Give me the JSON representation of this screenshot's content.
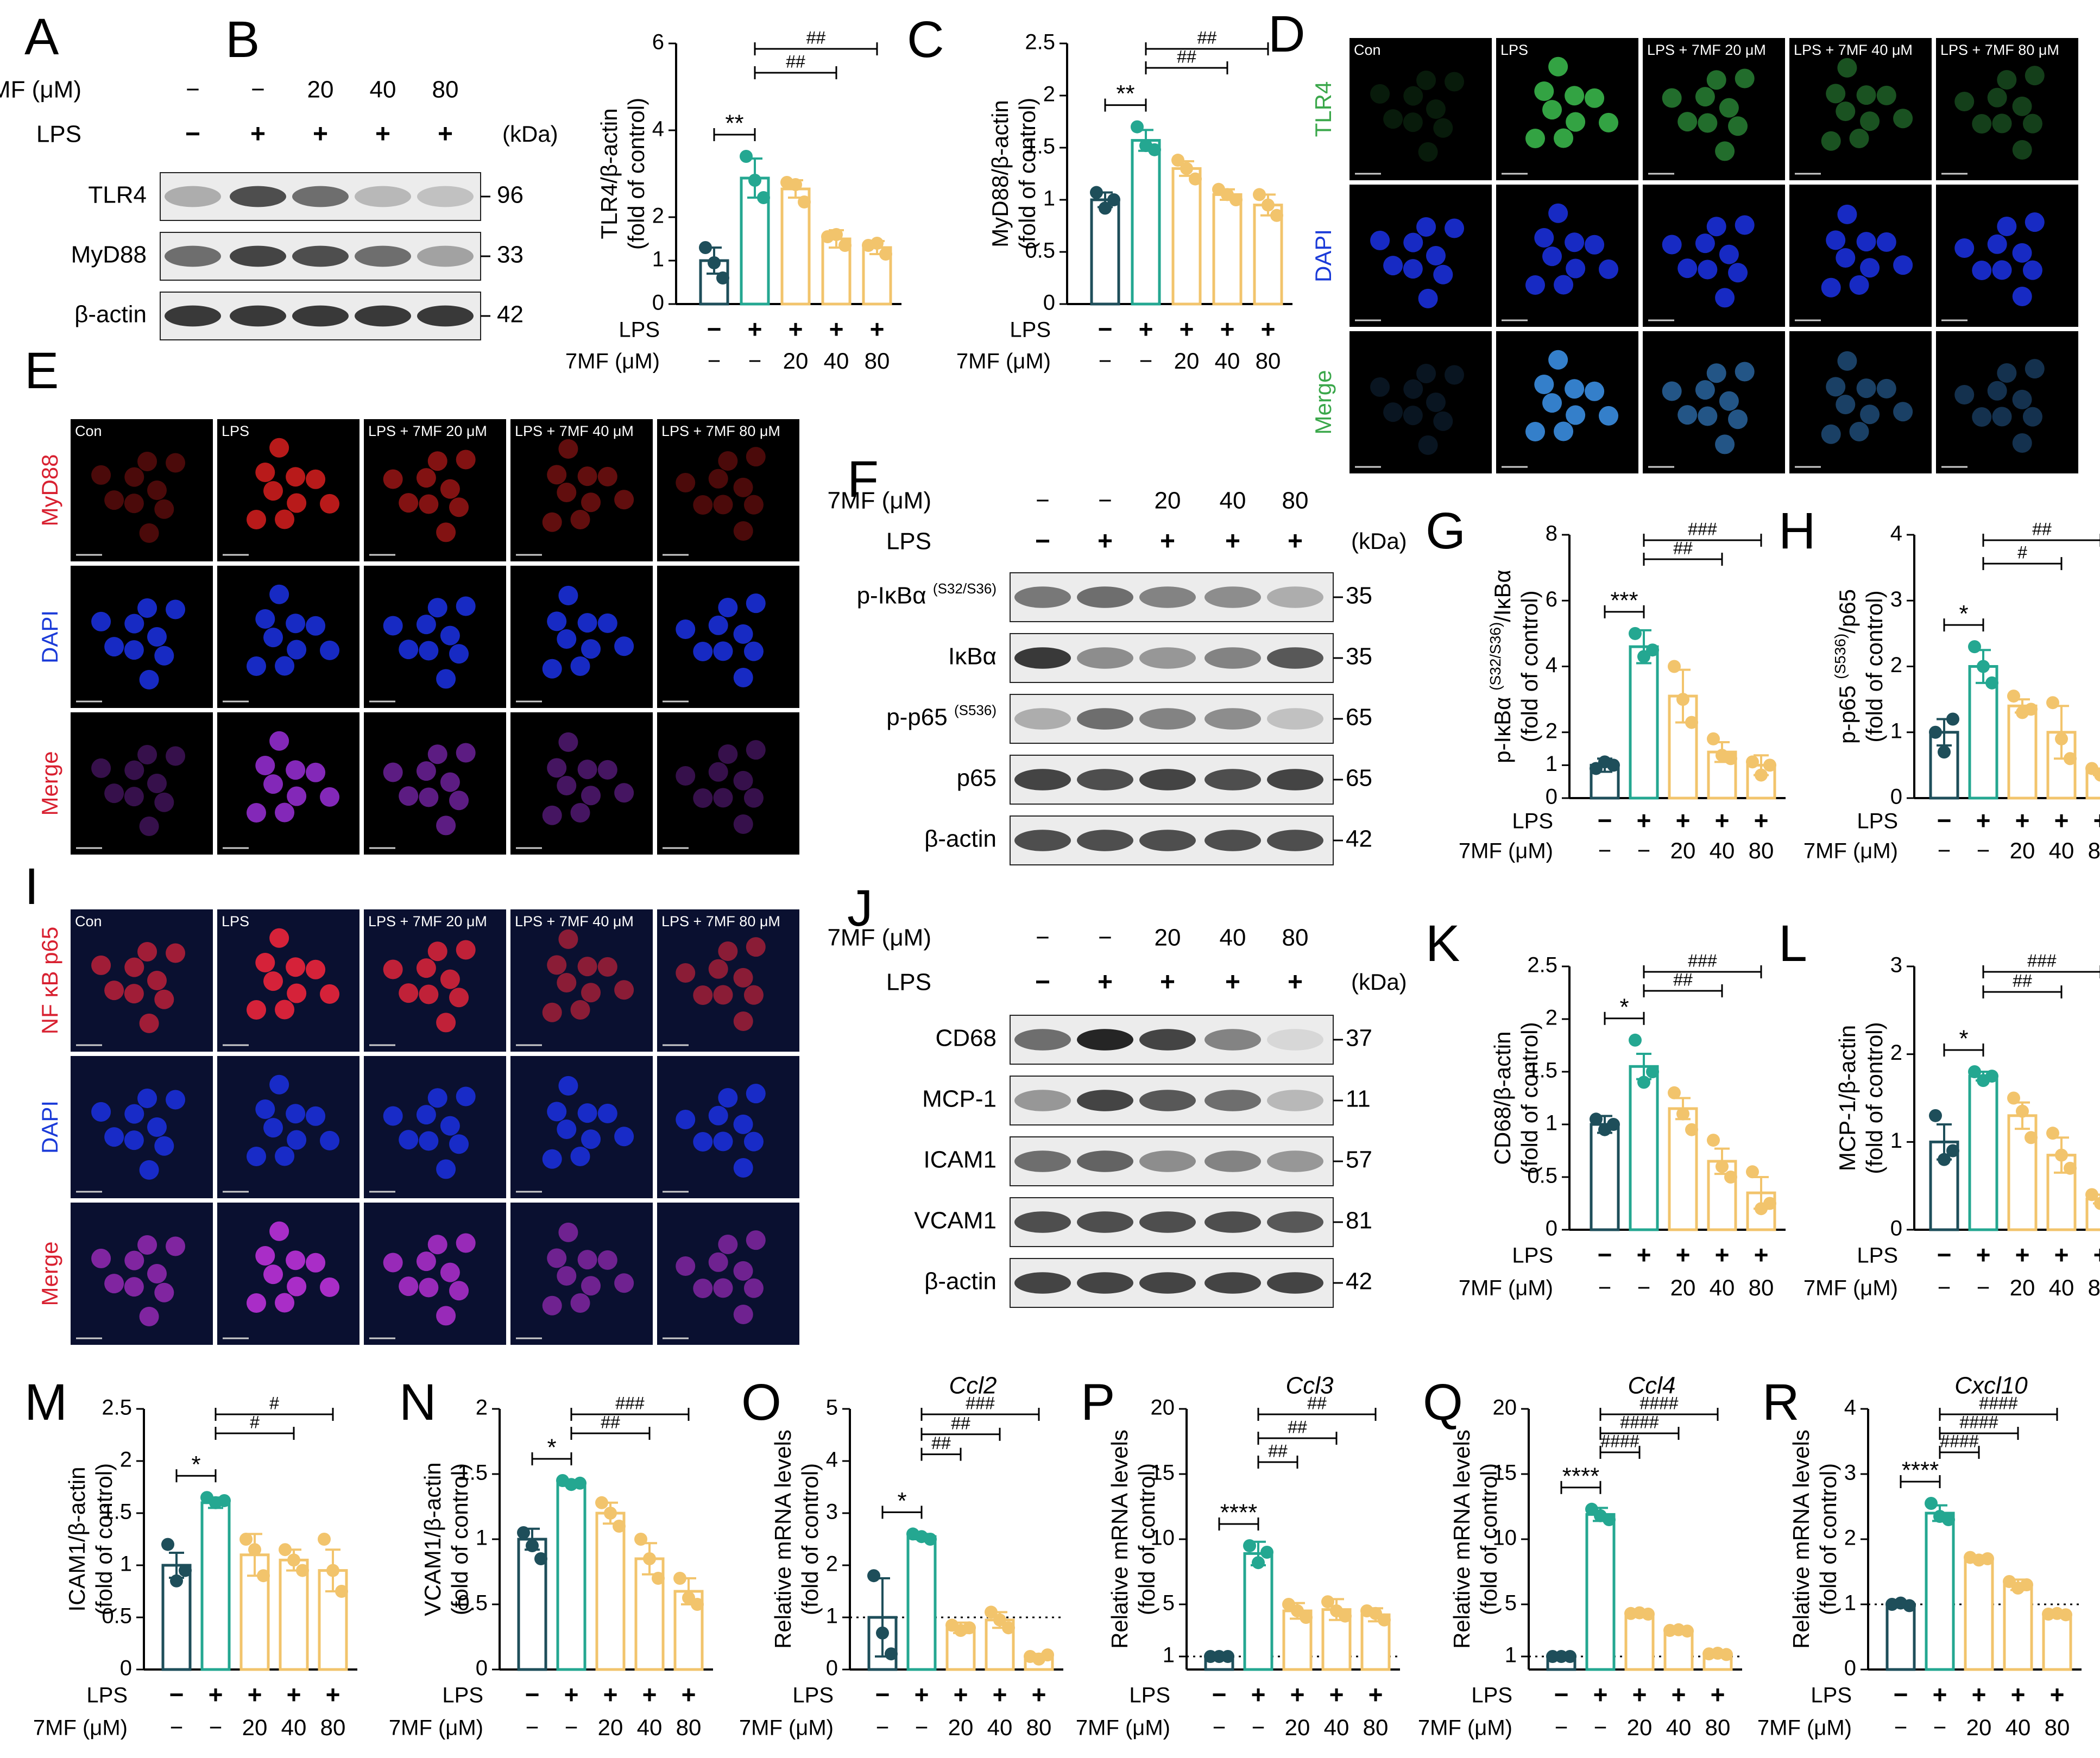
{
  "groups_lps": [
    "−",
    "+",
    "+",
    "+",
    "+"
  ],
  "groups_7mf": [
    "−",
    "−",
    "20",
    "40",
    "80"
  ],
  "row_label_lps": "LPS",
  "row_label_7mf": "7MF (μM)",
  "kda_label": "(kDa)",
  "colors": {
    "control": "#1e4e5a",
    "lps": "#24a791",
    "treat": "#f2c46c",
    "blot_bg": "#ececec",
    "band": "#1a1a1a"
  },
  "panel_letters": [
    "A",
    "B",
    "C",
    "D",
    "E",
    "F",
    "G",
    "H",
    "I",
    "J",
    "K",
    "L",
    "M",
    "N",
    "O",
    "P",
    "Q",
    "R"
  ],
  "blots": [
    {
      "panel": "A",
      "rows": [
        {
          "label": "TLR4",
          "kda": "96",
          "intensity": [
            0.3,
            0.75,
            0.6,
            0.25,
            0.2
          ]
        },
        {
          "label": "MyD88",
          "kda": "33",
          "intensity": [
            0.6,
            0.8,
            0.75,
            0.6,
            0.35
          ]
        },
        {
          "label": "β-actin",
          "kda": "42",
          "intensity": [
            0.85,
            0.85,
            0.85,
            0.85,
            0.85
          ]
        }
      ]
    },
    {
      "panel": "F",
      "rows": [
        {
          "label": "p-IκBα",
          "label_sup": "(S32/S36)",
          "kda": "35",
          "intensity": [
            0.55,
            0.6,
            0.5,
            0.45,
            0.3
          ]
        },
        {
          "label": "IκBα",
          "kda": "35",
          "intensity": [
            0.85,
            0.45,
            0.4,
            0.5,
            0.7
          ]
        },
        {
          "label": "p-p65",
          "label_sup": "(S536)",
          "kda": "65",
          "intensity": [
            0.3,
            0.6,
            0.5,
            0.45,
            0.2
          ]
        },
        {
          "label": "p65",
          "kda": "65",
          "intensity": [
            0.8,
            0.75,
            0.8,
            0.75,
            0.8
          ]
        },
        {
          "label": "β-actin",
          "kda": "42",
          "intensity": [
            0.75,
            0.75,
            0.75,
            0.75,
            0.75
          ]
        }
      ]
    },
    {
      "panel": "J",
      "rows": [
        {
          "label": "CD68",
          "kda": "37",
          "intensity": [
            0.6,
            0.95,
            0.8,
            0.5,
            0.1
          ]
        },
        {
          "label": "MCP-1",
          "kda": "11",
          "intensity": [
            0.4,
            0.8,
            0.7,
            0.6,
            0.25
          ]
        },
        {
          "label": "ICAM1",
          "kda": "57",
          "intensity": [
            0.6,
            0.65,
            0.45,
            0.5,
            0.4
          ]
        },
        {
          "label": "VCAM1",
          "kda": "81",
          "intensity": [
            0.75,
            0.75,
            0.75,
            0.75,
            0.7
          ]
        },
        {
          "label": "β-actin",
          "kda": "42",
          "intensity": [
            0.8,
            0.8,
            0.8,
            0.8,
            0.8
          ]
        }
      ]
    }
  ],
  "micrographs": [
    {
      "panel": "D",
      "channels": [
        "TLR4",
        "DAPI",
        "Merge"
      ],
      "columns": [
        "Con",
        "LPS",
        "LPS + 7MF 20 μM",
        "LPS + 7MF 40 μM",
        "LPS + 7MF 80 μM"
      ]
    },
    {
      "panel": "E",
      "channels": [
        "MyD88",
        "DAPI",
        "Merge"
      ],
      "columns": [
        "Con",
        "LPS",
        "LPS + 7MF 20 μM",
        "LPS + 7MF 40 μM",
        "LPS + 7MF 80 μM"
      ]
    },
    {
      "panel": "I",
      "channels": [
        "NF κB p65",
        "DAPI",
        "Merge"
      ],
      "columns": [
        "Con",
        "LPS",
        "LPS + 7MF 20 μM",
        "LPS + 7MF 40 μM",
        "LPS + 7MF 80 μM"
      ]
    }
  ],
  "chart_data": [
    {
      "panel": "B",
      "type": "bar",
      "ylabel": [
        "TLR4/β-actin",
        "(fold of control)"
      ],
      "ylim": [
        0,
        6
      ],
      "yticks": [
        0,
        1,
        2,
        4,
        6
      ],
      "values": [
        1.0,
        2.9,
        2.65,
        1.5,
        1.3
      ],
      "errors": [
        0.3,
        0.45,
        0.2,
        0.2,
        0.15
      ],
      "points": [
        [
          1.3,
          0.95,
          0.6
        ],
        [
          3.4,
          2.85,
          2.45
        ],
        [
          2.8,
          2.75,
          2.35
        ],
        [
          1.55,
          1.6,
          1.35
        ],
        [
          1.35,
          1.4,
          1.15
        ]
      ],
      "sig": [
        {
          "from": 0,
          "to": 1,
          "label": "**"
        },
        {
          "from": 1,
          "to": 3,
          "label": "##"
        },
        {
          "from": 1,
          "to": 4,
          "label": "##"
        }
      ]
    },
    {
      "panel": "C",
      "type": "bar",
      "ylabel": [
        "MyD88/β-actin",
        "(fold of control)"
      ],
      "ylim": [
        0,
        2.5
      ],
      "yticks": [
        0.0,
        0.5,
        1.0,
        1.5,
        2.0,
        2.5
      ],
      "values": [
        1.0,
        1.57,
        1.3,
        1.05,
        0.95
      ],
      "errors": [
        0.07,
        0.1,
        0.07,
        0.05,
        0.1
      ],
      "points": [
        [
          1.07,
          0.92,
          1.0
        ],
        [
          1.7,
          1.52,
          1.48
        ],
        [
          1.38,
          1.3,
          1.2
        ],
        [
          1.1,
          1.05,
          1.0
        ],
        [
          1.05,
          0.95,
          0.85
        ]
      ],
      "sig": [
        {
          "from": 0,
          "to": 1,
          "label": "**"
        },
        {
          "from": 1,
          "to": 3,
          "label": "##"
        },
        {
          "from": 1,
          "to": 4,
          "label": "##"
        }
      ]
    },
    {
      "panel": "G",
      "type": "bar",
      "ylabel": [
        "p-IκBα",
        "(S32/S36)",
        "/IκBα",
        "(fold of control)"
      ],
      "ylim": [
        0,
        8
      ],
      "yticks": [
        0,
        1,
        2,
        4,
        6,
        8
      ],
      "values": [
        1.0,
        4.6,
        3.1,
        1.4,
        1.0
      ],
      "errors": [
        0.2,
        0.5,
        0.8,
        0.3,
        0.3
      ],
      "points": [
        [
          0.9,
          1.1,
          1.0
        ],
        [
          5.0,
          4.3,
          4.5
        ],
        [
          4.0,
          3.0,
          2.3
        ],
        [
          1.8,
          1.3,
          1.2
        ],
        [
          1.1,
          0.7,
          1.0
        ]
      ],
      "sig": [
        {
          "from": 0,
          "to": 1,
          "label": "***"
        },
        {
          "from": 1,
          "to": 3,
          "label": "##"
        },
        {
          "from": 1,
          "to": 4,
          "label": "###"
        }
      ]
    },
    {
      "panel": "H",
      "type": "bar",
      "ylabel": [
        "p-p65",
        "(S536)",
        "/p65",
        "(fold of control)"
      ],
      "ylim": [
        0,
        4
      ],
      "yticks": [
        0,
        1,
        2,
        3,
        4
      ],
      "values": [
        1.0,
        2.0,
        1.4,
        1.0,
        0.4
      ],
      "errors": [
        0.2,
        0.25,
        0.1,
        0.4,
        0.05
      ],
      "points": [
        [
          1.0,
          0.7,
          1.2
        ],
        [
          2.3,
          2.0,
          1.75
        ],
        [
          1.55,
          1.3,
          1.35
        ],
        [
          1.45,
          0.9,
          0.6
        ],
        [
          0.45,
          0.35,
          0.4
        ]
      ],
      "sig": [
        {
          "from": 0,
          "to": 1,
          "label": "*"
        },
        {
          "from": 1,
          "to": 3,
          "label": "#"
        },
        {
          "from": 1,
          "to": 4,
          "label": "##"
        }
      ]
    },
    {
      "panel": "K",
      "type": "bar",
      "ylabel": [
        "CD68/β-actin",
        "(fold of control)"
      ],
      "ylim": [
        0,
        2.5
      ],
      "yticks": [
        0.0,
        0.5,
        1.0,
        1.5,
        2.0,
        2.5
      ],
      "values": [
        1.0,
        1.55,
        1.15,
        0.65,
        0.35
      ],
      "errors": [
        0.08,
        0.12,
        0.1,
        0.12,
        0.15
      ],
      "points": [
        [
          1.05,
          0.95,
          1.0
        ],
        [
          1.8,
          1.4,
          1.5
        ],
        [
          1.3,
          1.1,
          0.95
        ],
        [
          0.85,
          0.6,
          0.5
        ],
        [
          0.55,
          0.2,
          0.25
        ]
      ],
      "sig": [
        {
          "from": 0,
          "to": 1,
          "label": "*"
        },
        {
          "from": 1,
          "to": 3,
          "label": "##"
        },
        {
          "from": 1,
          "to": 4,
          "label": "###"
        }
      ]
    },
    {
      "panel": "L",
      "type": "bar",
      "ylabel": [
        "MCP-1/β-actin",
        "(fold of control)"
      ],
      "ylim": [
        0,
        3
      ],
      "yticks": [
        0,
        1,
        2,
        3
      ],
      "values": [
        1.0,
        1.75,
        1.3,
        0.85,
        0.35
      ],
      "errors": [
        0.2,
        0.05,
        0.15,
        0.2,
        0.05
      ],
      "points": [
        [
          1.3,
          0.8,
          0.9
        ],
        [
          1.8,
          1.7,
          1.75
        ],
        [
          1.5,
          1.35,
          1.05
        ],
        [
          1.1,
          0.85,
          0.7
        ],
        [
          0.4,
          0.3,
          0.35
        ]
      ],
      "sig": [
        {
          "from": 0,
          "to": 1,
          "label": "*"
        },
        {
          "from": 1,
          "to": 3,
          "label": "##"
        },
        {
          "from": 1,
          "to": 4,
          "label": "###"
        }
      ]
    },
    {
      "panel": "M",
      "type": "bar",
      "ylabel": [
        "ICAM1/β-actin",
        "(fold of control)"
      ],
      "ylim": [
        0,
        2.5
      ],
      "yticks": [
        0.0,
        0.5,
        1.0,
        1.5,
        2.0,
        2.5
      ],
      "values": [
        1.0,
        1.6,
        1.1,
        1.05,
        0.95
      ],
      "errors": [
        0.12,
        0.05,
        0.2,
        0.1,
        0.2
      ],
      "points": [
        [
          1.2,
          0.85,
          0.95
        ],
        [
          1.65,
          1.6,
          1.62
        ],
        [
          1.25,
          1.15,
          0.9
        ],
        [
          1.15,
          1.05,
          0.95
        ],
        [
          1.25,
          0.95,
          0.75
        ]
      ],
      "sig": [
        {
          "from": 0,
          "to": 1,
          "label": "*"
        },
        {
          "from": 1,
          "to": 3,
          "label": "#"
        },
        {
          "from": 1,
          "to": 4,
          "label": "#"
        }
      ]
    },
    {
      "panel": "N",
      "type": "bar",
      "ylabel": [
        "VCAM1/β-actin",
        "(fold of control)"
      ],
      "ylim": [
        0,
        2.0
      ],
      "yticks": [
        0.0,
        0.5,
        1.0,
        1.5,
        2.0
      ],
      "values": [
        1.0,
        1.43,
        1.2,
        0.85,
        0.6
      ],
      "errors": [
        0.08,
        0.02,
        0.08,
        0.12,
        0.1
      ],
      "points": [
        [
          1.05,
          0.95,
          0.85
        ],
        [
          1.45,
          1.42,
          1.43
        ],
        [
          1.28,
          1.2,
          1.1
        ],
        [
          1.0,
          0.85,
          0.7
        ],
        [
          0.7,
          0.55,
          0.5
        ]
      ],
      "sig": [
        {
          "from": 0,
          "to": 1,
          "label": "*"
        },
        {
          "from": 1,
          "to": 3,
          "label": "##"
        },
        {
          "from": 1,
          "to": 4,
          "label": "###"
        }
      ]
    },
    {
      "panel": "O",
      "type": "bar",
      "title": "Ccl2",
      "ylabel": [
        "Relative mRNA levels",
        "(fold of control)"
      ],
      "ylim": [
        0,
        5
      ],
      "yticks": [
        0,
        1,
        2,
        3,
        4,
        5
      ],
      "refline": 1,
      "values": [
        1.0,
        2.55,
        0.8,
        0.95,
        0.25
      ],
      "errors": [
        0.75,
        0.05,
        0.1,
        0.15,
        0.05
      ],
      "points": [
        [
          1.8,
          0.7,
          0.3
        ],
        [
          2.6,
          2.55,
          2.5
        ],
        [
          0.85,
          0.75,
          0.8
        ],
        [
          1.1,
          0.95,
          0.8
        ],
        [
          0.25,
          0.2,
          0.28
        ]
      ],
      "sig": [
        {
          "from": 0,
          "to": 1,
          "label": "*"
        },
        {
          "from": 1,
          "to": 2,
          "label": "##"
        },
        {
          "from": 1,
          "to": 3,
          "label": "##"
        },
        {
          "from": 1,
          "to": 4,
          "label": "###"
        }
      ]
    },
    {
      "panel": "P",
      "type": "bar",
      "title": "Ccl3",
      "ylabel": [
        "Relative mRNA levels",
        "(fold of control)"
      ],
      "ylim": [
        0,
        20
      ],
      "yticks": [
        1,
        5,
        10,
        15,
        20
      ],
      "refline": 1,
      "values": [
        1.0,
        8.9,
        4.5,
        4.6,
        4.2
      ],
      "errors": [
        0.05,
        0.9,
        0.6,
        0.8,
        0.5
      ],
      "points": [
        [
          1.0,
          1.0,
          1.0
        ],
        [
          9.5,
          8.2,
          9.0
        ],
        [
          5.0,
          4.5,
          4.0
        ],
        [
          5.2,
          4.5,
          4.1
        ],
        [
          4.5,
          4.3,
          3.8
        ]
      ],
      "sig": [
        {
          "from": 0,
          "to": 1,
          "label": "****"
        },
        {
          "from": 1,
          "to": 2,
          "label": "##"
        },
        {
          "from": 1,
          "to": 3,
          "label": "##"
        },
        {
          "from": 1,
          "to": 4,
          "label": "##"
        }
      ]
    },
    {
      "panel": "Q",
      "type": "bar",
      "title": "Ccl4",
      "ylabel": [
        "Relative mRNA levels",
        "(fold of control)"
      ],
      "ylim": [
        0,
        20
      ],
      "yticks": [
        1,
        5,
        10,
        15,
        20
      ],
      "refline": 1,
      "values": [
        1.0,
        11.9,
        4.3,
        3.0,
        1.2
      ],
      "errors": [
        0.05,
        0.5,
        0.1,
        0.1,
        0.05
      ],
      "points": [
        [
          1.0,
          1.0,
          1.0
        ],
        [
          12.3,
          11.8,
          11.5
        ],
        [
          4.3,
          4.35,
          4.25
        ],
        [
          3.0,
          3.05,
          2.95
        ],
        [
          1.2,
          1.25,
          1.15
        ]
      ],
      "sig": [
        {
          "from": 0,
          "to": 1,
          "label": "****"
        },
        {
          "from": 1,
          "to": 2,
          "label": "####"
        },
        {
          "from": 1,
          "to": 3,
          "label": "####"
        },
        {
          "from": 1,
          "to": 4,
          "label": "####"
        }
      ]
    },
    {
      "panel": "R",
      "type": "bar",
      "title": "Cxcl10",
      "ylabel": [
        "Relative mRNA levels",
        "(fold of control)"
      ],
      "ylim": [
        0,
        4
      ],
      "yticks": [
        0,
        1,
        2,
        3,
        4
      ],
      "refline": 1,
      "values": [
        1.0,
        2.4,
        1.7,
        1.3,
        0.85
      ],
      "errors": [
        0.03,
        0.12,
        0.05,
        0.08,
        0.03
      ],
      "points": [
        [
          1.0,
          1.02,
          0.98
        ],
        [
          2.55,
          2.35,
          2.3
        ],
        [
          1.72,
          1.68,
          1.7
        ],
        [
          1.35,
          1.25,
          1.3
        ],
        [
          0.85,
          0.86,
          0.84
        ]
      ],
      "sig": [
        {
          "from": 0,
          "to": 1,
          "label": "****"
        },
        {
          "from": 1,
          "to": 2,
          "label": "####"
        },
        {
          "from": 1,
          "to": 3,
          "label": "####"
        },
        {
          "from": 1,
          "to": 4,
          "label": "####"
        }
      ]
    }
  ]
}
